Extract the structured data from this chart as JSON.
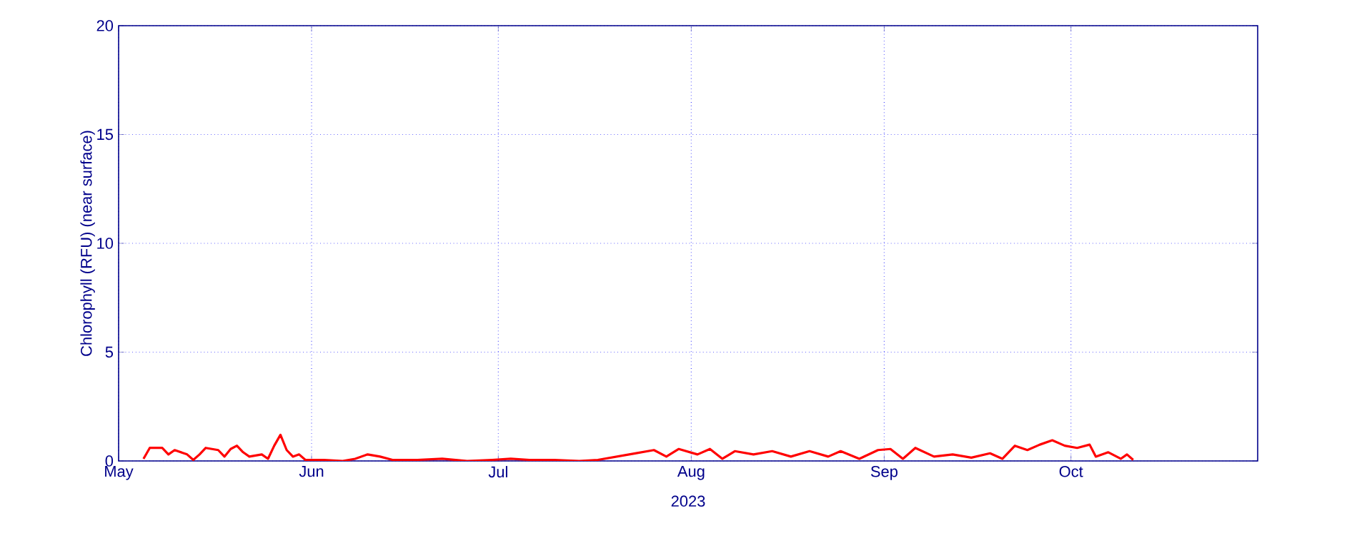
{
  "chart_data": {
    "type": "line",
    "ylabel": "Chlorophyll (RFU) (near surface)",
    "xlabel": "2023",
    "xlim": [
      "2023-05-01",
      "2023-10-31"
    ],
    "xticks": [
      {
        "value": "2023-05-01",
        "label": "May"
      },
      {
        "value": "2023-06-01",
        "label": "Jun"
      },
      {
        "value": "2023-07-01",
        "label": "Jul"
      },
      {
        "value": "2023-08-01",
        "label": "Aug"
      },
      {
        "value": "2023-09-01",
        "label": "Sep"
      },
      {
        "value": "2023-10-01",
        "label": "Oct"
      }
    ],
    "ylim": [
      0,
      20
    ],
    "yticks": [
      0,
      5,
      10,
      15,
      20
    ],
    "grid": true,
    "marker": "none",
    "line_style": "solid",
    "series": [
      {
        "color": "#ff0000",
        "x": [
          "2023-05-05",
          "2023-05-06",
          "2023-05-08",
          "2023-05-09",
          "2023-05-10",
          "2023-05-12",
          "2023-05-13",
          "2023-05-14",
          "2023-05-15",
          "2023-05-17",
          "2023-05-18",
          "2023-05-19",
          "2023-05-20",
          "2023-05-21",
          "2023-05-22",
          "2023-05-24",
          "2023-05-25",
          "2023-05-26",
          "2023-05-27",
          "2023-05-28",
          "2023-05-29",
          "2023-05-30",
          "2023-05-31",
          "2023-06-03",
          "2023-06-06",
          "2023-06-08",
          "2023-06-10",
          "2023-06-12",
          "2023-06-14",
          "2023-06-18",
          "2023-06-22",
          "2023-06-26",
          "2023-06-30",
          "2023-07-03",
          "2023-07-06",
          "2023-07-10",
          "2023-07-14",
          "2023-07-17",
          "2023-07-20",
          "2023-07-23",
          "2023-07-26",
          "2023-07-28",
          "2023-07-30",
          "2023-08-02",
          "2023-08-04",
          "2023-08-06",
          "2023-08-08",
          "2023-08-11",
          "2023-08-14",
          "2023-08-17",
          "2023-08-20",
          "2023-08-23",
          "2023-08-25",
          "2023-08-28",
          "2023-08-31",
          "2023-09-02",
          "2023-09-04",
          "2023-09-06",
          "2023-09-09",
          "2023-09-12",
          "2023-09-15",
          "2023-09-18",
          "2023-09-20",
          "2023-09-22",
          "2023-09-24",
          "2023-09-26",
          "2023-09-28",
          "2023-09-30",
          "2023-10-02",
          "2023-10-04",
          "2023-10-05",
          "2023-10-07",
          "2023-10-09",
          "2023-10-10",
          "2023-10-11"
        ],
        "values": [
          0.1,
          0.6,
          0.6,
          0.3,
          0.5,
          0.3,
          0.05,
          0.3,
          0.6,
          0.5,
          0.2,
          0.55,
          0.7,
          0.4,
          0.2,
          0.3,
          0.1,
          0.7,
          1.2,
          0.5,
          0.2,
          0.3,
          0.05,
          0.05,
          0.0,
          0.1,
          0.3,
          0.2,
          0.05,
          0.05,
          0.1,
          0.0,
          0.05,
          0.1,
          0.05,
          0.05,
          0.0,
          0.05,
          0.2,
          0.35,
          0.5,
          0.2,
          0.55,
          0.3,
          0.55,
          0.1,
          0.45,
          0.3,
          0.45,
          0.2,
          0.45,
          0.2,
          0.45,
          0.1,
          0.5,
          0.55,
          0.1,
          0.6,
          0.2,
          0.3,
          0.15,
          0.35,
          0.1,
          0.7,
          0.5,
          0.75,
          0.95,
          0.7,
          0.6,
          0.75,
          0.2,
          0.4,
          0.1,
          0.3,
          0.05
        ]
      }
    ]
  }
}
